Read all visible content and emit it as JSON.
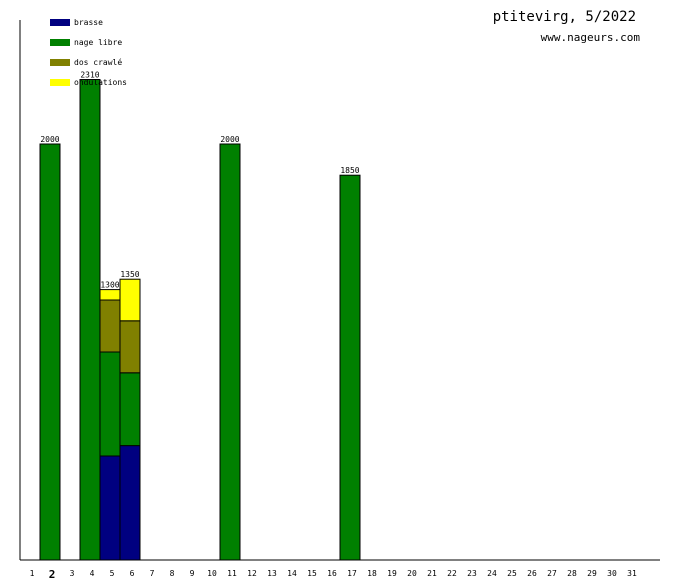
{
  "header": {
    "title": "ptitevirg, 5/2022",
    "site": "www.nageurs.com"
  },
  "chart_data": {
    "type": "bar",
    "stacked": true,
    "x_ticks": [
      "1",
      "2",
      "3",
      "4",
      "5",
      "6",
      "7",
      "8",
      "9",
      "10",
      "11",
      "12",
      "13",
      "14",
      "15",
      "16",
      "17",
      "18",
      "19",
      "20",
      "21",
      "22",
      "23",
      "24",
      "25",
      "26",
      "27",
      "28",
      "29",
      "30",
      "31"
    ],
    "highlight_tick": "2",
    "ylim": [
      0,
      2600
    ],
    "legend_position": "top-left",
    "legend": [
      {
        "name": "brasse",
        "color": "#000080"
      },
      {
        "name": "nage libre",
        "color": "#008000"
      },
      {
        "name": "dos crawlé",
        "color": "#808000"
      },
      {
        "name": "ondulations",
        "color": "#ffff00"
      }
    ],
    "days": [
      {
        "day": 2,
        "total": 2000,
        "segments": [
          0,
          2000,
          0,
          0
        ]
      },
      {
        "day": 4,
        "total": 2310,
        "segments": [
          0,
          2310,
          0,
          0
        ]
      },
      {
        "day": 5,
        "total": 1300,
        "segments": [
          500,
          500,
          250,
          50
        ]
      },
      {
        "day": 6,
        "total": 1350,
        "segments": [
          550,
          350,
          250,
          200
        ]
      },
      {
        "day": 11,
        "total": 2000,
        "segments": [
          0,
          2000,
          0,
          0
        ]
      },
      {
        "day": 17,
        "total": 1850,
        "segments": [
          0,
          1850,
          0,
          0
        ]
      }
    ]
  }
}
